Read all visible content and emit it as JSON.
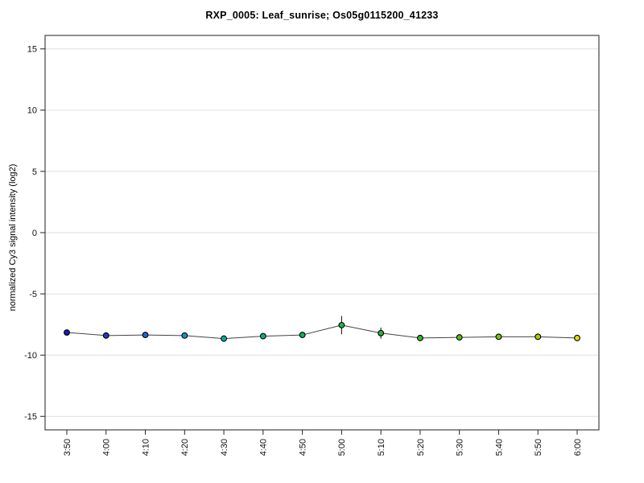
{
  "chart_data": {
    "type": "line",
    "title": "RXP_0005: Leaf_sunrise; Os05g0115200_41233",
    "xlabel": "",
    "ylabel": "normalized Cy3 signal intensity (log2)",
    "ylim": [
      -16.1,
      16.1
    ],
    "yticks": [
      15,
      10,
      5,
      0,
      -5,
      -10,
      -15
    ],
    "categories": [
      "3:50",
      "4:00",
      "4:10",
      "4:20",
      "4:30",
      "4:40",
      "4:50",
      "5:00",
      "5:10",
      "5:20",
      "5:30",
      "5:40",
      "5:50",
      "6:00"
    ],
    "series": [
      {
        "values": [
          -8.15,
          -8.4,
          -8.35,
          -8.4,
          -8.65,
          -8.45,
          -8.35,
          -7.55,
          -8.2,
          -8.6,
          -8.55,
          -8.5,
          -8.5,
          -8.6
        ],
        "errors": [
          0.05,
          0.1,
          0.15,
          0.15,
          0.1,
          0.15,
          0.15,
          0.75,
          0.45,
          0.1,
          0.15,
          0.15,
          0.15,
          0.25
        ],
        "point_colors": [
          "#1c1cb4",
          "#2038cc",
          "#1c64d8",
          "#0098d0",
          "#00b2a8",
          "#00b386",
          "#0ab55e",
          "#17b648",
          "#24b738",
          "#33ba29",
          "#50c01a",
          "#74c70c",
          "#a6d004",
          "#e4de00"
        ]
      }
    ],
    "grid": "horizontal",
    "legend": "none",
    "xticklabel_rotation": 90,
    "colors": {
      "line": "#444444",
      "grid": "#dddddd",
      "frame": "#444444",
      "tick": "#222222",
      "label": "#111111",
      "error_bar": "#1a1a1a",
      "marker_outline": "#000000",
      "background": "#ffffff"
    }
  }
}
